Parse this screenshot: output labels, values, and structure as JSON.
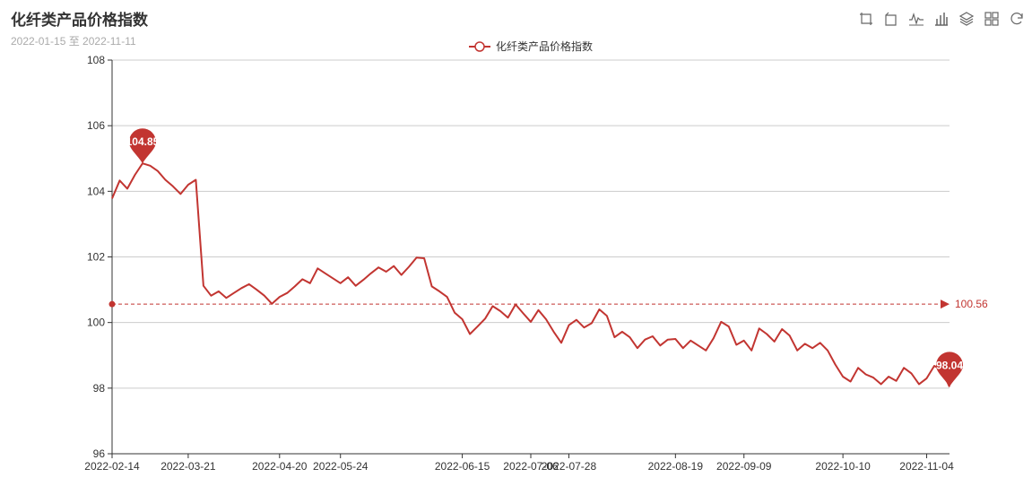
{
  "title": "化纤类产品价格指数",
  "subtitle": "2022-01-15 至 2022-11-11",
  "toolbox": [
    "crop-icon",
    "undo-icon",
    "line-chart-icon",
    "bar-chart-icon",
    "stack-icon",
    "tile-icon",
    "refresh-icon"
  ],
  "colors": {
    "series": "#c23531",
    "axis": "#333333",
    "grid": "#cccccc",
    "text": "#333333"
  },
  "chart_data": {
    "type": "line",
    "title": "化纤类产品价格指数",
    "series": [
      {
        "name": "化纤类产品价格指数",
        "x": [
          "2022-02-14",
          "2022-02-17",
          "2022-02-22",
          "2022-02-25",
          "2022-03-02",
          "2022-03-07",
          "2022-03-09",
          "2022-03-11",
          "2022-03-14",
          "2022-03-16",
          "2022-03-21",
          "2022-03-23",
          "2022-03-25",
          "2022-03-28",
          "2022-03-31",
          "2022-04-04",
          "2022-04-06",
          "2022-04-08",
          "2022-04-11",
          "2022-04-13",
          "2022-04-15",
          "2022-04-18",
          "2022-04-20",
          "2022-04-22",
          "2022-04-25",
          "2022-04-27",
          "2022-04-29",
          "2022-05-02",
          "2022-05-04",
          "2022-05-06",
          "2022-05-09",
          "2022-05-11",
          "2022-05-13",
          "2022-05-16",
          "2022-05-18",
          "2022-05-20",
          "2022-05-23",
          "2022-05-25",
          "2022-05-27",
          "2022-05-30",
          "2022-06-01",
          "2022-06-03",
          "2022-06-06",
          "2022-06-08",
          "2022-06-10",
          "2022-06-13",
          "2022-06-15",
          "2022-06-17",
          "2022-06-20",
          "2022-06-22",
          "2022-06-24",
          "2022-06-27",
          "2022-06-29",
          "2022-07-01",
          "2022-07-04",
          "2022-07-06",
          "2022-07-08",
          "2022-07-11",
          "2022-07-13",
          "2022-07-15",
          "2022-07-18",
          "2022-07-20",
          "2022-07-22",
          "2022-07-25",
          "2022-07-27",
          "2022-07-29",
          "2022-08-01",
          "2022-08-03",
          "2022-08-05",
          "2022-08-08",
          "2022-08-10",
          "2022-08-12",
          "2022-08-15",
          "2022-08-17",
          "2022-08-19",
          "2022-08-22",
          "2022-08-24",
          "2022-08-26",
          "2022-08-29",
          "2022-08-31",
          "2022-09-02",
          "2022-09-05",
          "2022-09-07",
          "2022-09-09",
          "2022-09-12",
          "2022-09-14",
          "2022-09-16",
          "2022-09-19",
          "2022-09-21",
          "2022-09-23",
          "2022-09-26",
          "2022-09-28",
          "2022-09-30",
          "2022-10-03",
          "2022-10-05",
          "2022-10-07",
          "2022-10-10",
          "2022-10-12",
          "2022-10-14",
          "2022-10-17",
          "2022-10-19",
          "2022-10-21",
          "2022-10-24",
          "2022-10-26",
          "2022-10-28",
          "2022-10-31",
          "2022-11-02",
          "2022-11-04",
          "2022-11-07",
          "2022-11-09",
          "2022-11-11"
        ],
        "values": [
          103.78,
          104.33,
          104.08,
          104.5,
          104.85,
          104.78,
          104.62,
          104.35,
          104.15,
          103.92,
          104.2,
          104.35,
          101.12,
          100.82,
          100.95,
          100.75,
          100.9,
          101.05,
          101.17,
          101.0,
          100.82,
          100.57,
          100.78,
          100.9,
          101.1,
          101.32,
          101.2,
          101.65,
          101.5,
          101.35,
          101.2,
          101.38,
          101.12,
          101.3,
          101.5,
          101.68,
          101.55,
          101.72,
          101.45,
          101.7,
          101.98,
          101.96,
          101.1,
          100.95,
          100.78,
          100.3,
          100.1,
          99.65,
          99.88,
          100.12,
          100.5,
          100.35,
          100.15,
          100.55,
          100.28,
          100.02,
          100.38,
          100.1,
          99.72,
          99.38,
          99.92,
          100.08,
          99.85,
          99.98,
          100.4,
          100.2,
          99.55,
          99.72,
          99.55,
          99.22,
          99.48,
          99.58,
          99.3,
          99.48,
          99.5,
          99.22,
          99.45,
          99.3,
          99.15,
          99.52,
          100.02,
          99.88,
          99.32,
          99.45,
          99.15,
          99.82,
          99.65,
          99.42,
          99.8,
          99.6,
          99.15,
          99.35,
          99.22,
          99.38,
          99.15,
          98.72,
          98.35,
          98.2,
          98.62,
          98.42,
          98.32,
          98.12,
          98.35,
          98.22,
          98.62,
          98.45,
          98.12,
          98.3,
          98.68,
          98.55,
          98.04
        ]
      }
    ],
    "xlabels": [
      "2022-02-14",
      "2022-03-21",
      "2022-04-20",
      "2022-05-24",
      "2022-06-15",
      "2022-07-06",
      "2022-07-28",
      "2022-08-19",
      "2022-09-09",
      "2022-10-10",
      "2022-11-04"
    ],
    "ylim": [
      96,
      108
    ],
    "yticks": [
      96,
      98,
      100,
      102,
      104,
      106,
      108
    ],
    "markPoint": {
      "max": "104.85",
      "min": "98.04"
    },
    "markLine": {
      "average": "100.56"
    },
    "legend": {
      "position": "top-center",
      "label": "化纤类产品价格指数"
    },
    "grid": true
  }
}
